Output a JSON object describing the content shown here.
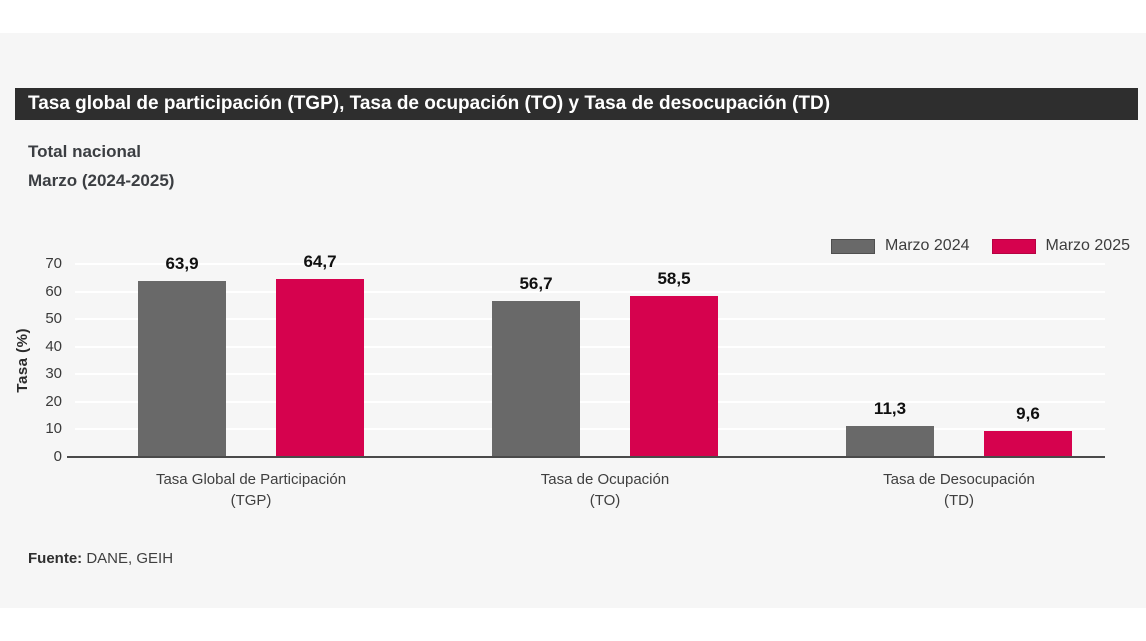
{
  "header": {
    "title": "Tasa global de participación (TGP), Tasa de ocupación (TO) y Tasa de desocupación (TD)"
  },
  "subtitle": {
    "line1": "Total nacional",
    "line2": "Marzo (2024-2025)"
  },
  "footer": {
    "label": "Fuente:",
    "text": " DANE, GEIH"
  },
  "colors": {
    "panel_bg": "#f6f6f6",
    "titlebar_bg": "#2e2e2e",
    "series_2024": "#696969",
    "series_2025": "#d6024e",
    "axis": "#4a4a4a"
  },
  "chart_data": {
    "type": "bar",
    "title": "Tasa global de participación (TGP), Tasa de ocupación (TO) y Tasa de desocupación (TD)",
    "subtitle": "Total nacional — Marzo (2024-2025)",
    "categories": [
      {
        "line1": "Tasa Global de Participación",
        "line2": "(TGP)"
      },
      {
        "line1": "Tasa de Ocupación",
        "line2": "(TO)"
      },
      {
        "line1": "Tasa de Desocupación",
        "line2": "(TD)"
      }
    ],
    "series": [
      {
        "name": "Marzo 2024",
        "color": "#696969",
        "border": "#4f4f4f",
        "values": [
          63.9,
          56.7,
          11.3
        ],
        "labels": [
          "63,9",
          "56,7",
          "11,3"
        ]
      },
      {
        "name": "Marzo 2025",
        "color": "#d6024e",
        "border": "#b50242",
        "values": [
          64.7,
          58.5,
          9.6
        ],
        "labels": [
          "64,7",
          "58,5",
          "9,6"
        ]
      }
    ],
    "xlabel": "",
    "ylabel": "Tasa (%)",
    "ylim": [
      0,
      70
    ],
    "ytick_step": 10,
    "yticks": [
      0,
      10,
      20,
      30,
      40,
      50,
      60,
      70
    ],
    "grid": true,
    "legend_position": "top-right"
  }
}
